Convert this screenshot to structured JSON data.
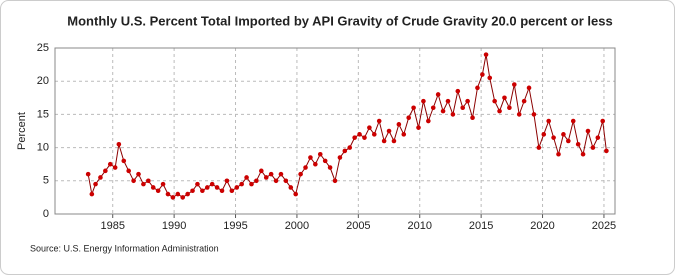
{
  "chart_data": {
    "type": "line",
    "title": "Monthly U.S. Percent Total Imported by API Gravity of Crude Gravity 20.0 percent or less",
    "ylabel": "Percent",
    "source": "Source: U.S. Energy Information Administration",
    "x": [
      1983.0,
      1983.3,
      1983.6,
      1984.0,
      1984.4,
      1984.8,
      1985.2,
      1985.5,
      1985.9,
      1986.3,
      1986.7,
      1987.1,
      1987.5,
      1987.9,
      1988.3,
      1988.7,
      1989.1,
      1989.5,
      1989.9,
      1990.3,
      1990.7,
      1991.1,
      1991.5,
      1991.9,
      1992.3,
      1992.7,
      1993.1,
      1993.5,
      1993.9,
      1994.3,
      1994.7,
      1995.1,
      1995.5,
      1995.9,
      1996.3,
      1996.7,
      1997.1,
      1997.5,
      1997.9,
      1998.3,
      1998.7,
      1999.1,
      1999.5,
      1999.9,
      2000.3,
      2000.7,
      2001.1,
      2001.5,
      2001.9,
      2002.3,
      2002.7,
      2003.1,
      2003.5,
      2003.9,
      2004.3,
      2004.7,
      2005.1,
      2005.5,
      2005.9,
      2006.3,
      2006.7,
      2007.1,
      2007.5,
      2007.9,
      2008.3,
      2008.7,
      2009.1,
      2009.5,
      2009.9,
      2010.3,
      2010.7,
      2011.1,
      2011.5,
      2011.9,
      2012.3,
      2012.7,
      2013.1,
      2013.5,
      2013.9,
      2014.3,
      2014.7,
      2015.1,
      2015.4,
      2015.7,
      2016.1,
      2016.5,
      2016.9,
      2017.3,
      2017.7,
      2018.1,
      2018.5,
      2018.9,
      2019.3,
      2019.7,
      2020.1,
      2020.5,
      2020.9,
      2021.3,
      2021.7,
      2022.1,
      2022.5,
      2022.9,
      2023.3,
      2023.7,
      2024.1,
      2024.5,
      2024.9,
      2025.2
    ],
    "series": [
      {
        "name": "Percent",
        "color": "#cc0000",
        "line_color": "#8b0000",
        "values": [
          6,
          3,
          4.5,
          5.5,
          6.5,
          7.5,
          7,
          10.5,
          8,
          6.5,
          5,
          6,
          4.5,
          5,
          4,
          3.5,
          4.5,
          3,
          2.5,
          3,
          2.5,
          3,
          3.5,
          4.5,
          3.5,
          4,
          4.5,
          4,
          3.5,
          5,
          3.5,
          4,
          4.5,
          5.5,
          4.5,
          5,
          6.5,
          5.5,
          6,
          5,
          6,
          5,
          4,
          3,
          6,
          7,
          8.5,
          7.5,
          9,
          8,
          7,
          5,
          8.5,
          9.5,
          10,
          11.5,
          12,
          11.5,
          13,
          12,
          14,
          11,
          12.5,
          11,
          13.5,
          12,
          14.5,
          16,
          13,
          17,
          14,
          16,
          18,
          15.5,
          17,
          15,
          18.5,
          16,
          17,
          14.5,
          19,
          21,
          24,
          20.5,
          17,
          15.5,
          17.5,
          16,
          19.5,
          15,
          17,
          19,
          15,
          10,
          12,
          14,
          11.5,
          9,
          12,
          11,
          14,
          10.5,
          9,
          12.5,
          10,
          11.5,
          14,
          9.5
        ]
      }
    ],
    "xlim": [
      1980.3,
      2025.9
    ],
    "xticks": [
      1985,
      1990,
      1995,
      2000,
      2005,
      2010,
      2015,
      2020,
      2025
    ],
    "ylim": [
      0,
      25
    ],
    "yticks": [
      0,
      5,
      10,
      15,
      20,
      25
    ],
    "grid": true
  }
}
